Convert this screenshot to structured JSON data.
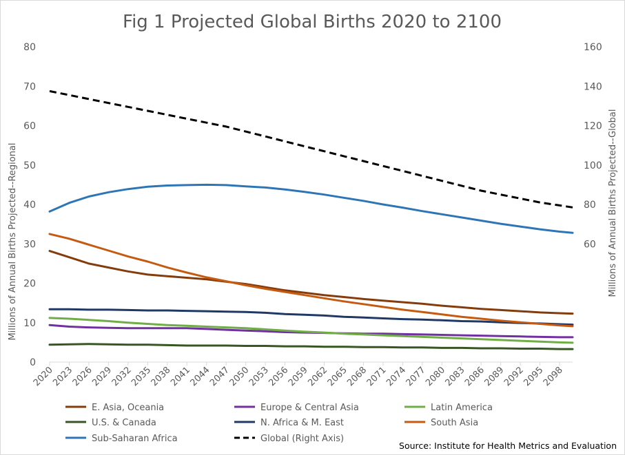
{
  "chart_data": {
    "type": "line",
    "title": "Fig 1 Projected Global Births 2020 to 2100",
    "ylabel": "Millions of Annual Births Projected--Regional",
    "y2label": "Millions of Annual Births Projected--Global",
    "ylim": [
      0,
      80
    ],
    "yticks": [
      0,
      10,
      20,
      30,
      40,
      50,
      60,
      70,
      80
    ],
    "y2lim": [
      0,
      160
    ],
    "y2ticks": [
      60,
      80,
      100,
      120,
      140,
      160
    ],
    "xlim": [
      2020,
      2100
    ],
    "xticks": [
      2020,
      2023,
      2026,
      2029,
      2032,
      2035,
      2038,
      2041,
      2044,
      2047,
      2050,
      2053,
      2056,
      2059,
      2062,
      2065,
      2068,
      2071,
      2074,
      2077,
      2080,
      2083,
      2086,
      2089,
      2092,
      2095,
      2098
    ],
    "grid": false,
    "legend_position": "bottom",
    "source": "Source: Institute for Health Metrics and Evaluation",
    "series": [
      {
        "name": "E. Asia, Oceania",
        "axis": "left",
        "color": "#843c0c",
        "dash": false,
        "points": [
          [
            2020,
            28.2
          ],
          [
            2023,
            26.6
          ],
          [
            2026,
            25.0
          ],
          [
            2029,
            24.0
          ],
          [
            2032,
            23.0
          ],
          [
            2035,
            22.2
          ],
          [
            2038,
            21.8
          ],
          [
            2041,
            21.4
          ],
          [
            2044,
            21.0
          ],
          [
            2047,
            20.4
          ],
          [
            2050,
            19.8
          ],
          [
            2053,
            19.0
          ],
          [
            2056,
            18.2
          ],
          [
            2059,
            17.6
          ],
          [
            2062,
            17.0
          ],
          [
            2065,
            16.5
          ],
          [
            2068,
            16.0
          ],
          [
            2071,
            15.6
          ],
          [
            2074,
            15.2
          ],
          [
            2077,
            14.8
          ],
          [
            2080,
            14.3
          ],
          [
            2083,
            13.9
          ],
          [
            2086,
            13.5
          ],
          [
            2089,
            13.2
          ],
          [
            2092,
            12.9
          ],
          [
            2095,
            12.6
          ],
          [
            2098,
            12.4
          ],
          [
            2100,
            12.3
          ]
        ]
      },
      {
        "name": "Europe & Central Asia",
        "axis": "left",
        "color": "#7030a0",
        "dash": false,
        "points": [
          [
            2020,
            9.4
          ],
          [
            2023,
            9.0
          ],
          [
            2026,
            8.8
          ],
          [
            2029,
            8.7
          ],
          [
            2032,
            8.6
          ],
          [
            2035,
            8.6
          ],
          [
            2038,
            8.6
          ],
          [
            2041,
            8.6
          ],
          [
            2044,
            8.4
          ],
          [
            2047,
            8.2
          ],
          [
            2050,
            8.0
          ],
          [
            2053,
            7.8
          ],
          [
            2056,
            7.6
          ],
          [
            2059,
            7.5
          ],
          [
            2062,
            7.4
          ],
          [
            2065,
            7.3
          ],
          [
            2068,
            7.2
          ],
          [
            2071,
            7.2
          ],
          [
            2074,
            7.1
          ],
          [
            2077,
            7.0
          ],
          [
            2080,
            6.9
          ],
          [
            2083,
            6.8
          ],
          [
            2086,
            6.7
          ],
          [
            2089,
            6.6
          ],
          [
            2092,
            6.5
          ],
          [
            2095,
            6.4
          ],
          [
            2098,
            6.3
          ],
          [
            2100,
            6.3
          ]
        ]
      },
      {
        "name": "Latin America",
        "axis": "left",
        "color": "#70ad47",
        "dash": false,
        "points": [
          [
            2020,
            11.2
          ],
          [
            2023,
            11.0
          ],
          [
            2026,
            10.7
          ],
          [
            2029,
            10.4
          ],
          [
            2032,
            10.0
          ],
          [
            2035,
            9.7
          ],
          [
            2038,
            9.4
          ],
          [
            2041,
            9.2
          ],
          [
            2044,
            9.0
          ],
          [
            2047,
            8.8
          ],
          [
            2050,
            8.6
          ],
          [
            2053,
            8.3
          ],
          [
            2056,
            8.0
          ],
          [
            2059,
            7.7
          ],
          [
            2062,
            7.5
          ],
          [
            2065,
            7.2
          ],
          [
            2068,
            7.0
          ],
          [
            2071,
            6.8
          ],
          [
            2074,
            6.6
          ],
          [
            2077,
            6.4
          ],
          [
            2080,
            6.2
          ],
          [
            2083,
            6.0
          ],
          [
            2086,
            5.8
          ],
          [
            2089,
            5.6
          ],
          [
            2092,
            5.4
          ],
          [
            2095,
            5.2
          ],
          [
            2098,
            5.0
          ],
          [
            2100,
            4.9
          ]
        ]
      },
      {
        "name": "U.S. & Canada",
        "axis": "left",
        "color": "#375623",
        "dash": false,
        "points": [
          [
            2020,
            4.4
          ],
          [
            2023,
            4.5
          ],
          [
            2026,
            4.6
          ],
          [
            2029,
            4.5
          ],
          [
            2032,
            4.4
          ],
          [
            2035,
            4.4
          ],
          [
            2038,
            4.3
          ],
          [
            2041,
            4.2
          ],
          [
            2044,
            4.2
          ],
          [
            2047,
            4.2
          ],
          [
            2050,
            4.1
          ],
          [
            2053,
            4.1
          ],
          [
            2056,
            4.0
          ],
          [
            2059,
            4.0
          ],
          [
            2062,
            3.9
          ],
          [
            2065,
            3.9
          ],
          [
            2068,
            3.8
          ],
          [
            2071,
            3.8
          ],
          [
            2074,
            3.7
          ],
          [
            2077,
            3.7
          ],
          [
            2080,
            3.6
          ],
          [
            2083,
            3.6
          ],
          [
            2086,
            3.5
          ],
          [
            2089,
            3.5
          ],
          [
            2092,
            3.4
          ],
          [
            2095,
            3.4
          ],
          [
            2098,
            3.3
          ],
          [
            2100,
            3.3
          ]
        ]
      },
      {
        "name": "N. Africa & M. East",
        "axis": "left",
        "color": "#203864",
        "dash": false,
        "points": [
          [
            2020,
            13.4
          ],
          [
            2023,
            13.4
          ],
          [
            2026,
            13.3
          ],
          [
            2029,
            13.3
          ],
          [
            2032,
            13.2
          ],
          [
            2035,
            13.1
          ],
          [
            2038,
            13.1
          ],
          [
            2041,
            13.0
          ],
          [
            2044,
            12.9
          ],
          [
            2047,
            12.8
          ],
          [
            2050,
            12.7
          ],
          [
            2053,
            12.5
          ],
          [
            2056,
            12.2
          ],
          [
            2059,
            12.0
          ],
          [
            2062,
            11.8
          ],
          [
            2065,
            11.5
          ],
          [
            2068,
            11.3
          ],
          [
            2071,
            11.1
          ],
          [
            2074,
            10.9
          ],
          [
            2077,
            10.8
          ],
          [
            2080,
            10.6
          ],
          [
            2083,
            10.4
          ],
          [
            2086,
            10.3
          ],
          [
            2089,
            10.1
          ],
          [
            2092,
            9.9
          ],
          [
            2095,
            9.8
          ],
          [
            2098,
            9.6
          ],
          [
            2100,
            9.5
          ]
        ]
      },
      {
        "name": "South Asia",
        "axis": "left",
        "color": "#c55a11",
        "dash": false,
        "points": [
          [
            2020,
            32.5
          ],
          [
            2023,
            31.3
          ],
          [
            2026,
            29.8
          ],
          [
            2029,
            28.3
          ],
          [
            2032,
            26.8
          ],
          [
            2035,
            25.5
          ],
          [
            2038,
            24.0
          ],
          [
            2041,
            22.7
          ],
          [
            2044,
            21.5
          ],
          [
            2047,
            20.5
          ],
          [
            2050,
            19.5
          ],
          [
            2053,
            18.6
          ],
          [
            2056,
            17.8
          ],
          [
            2059,
            17.0
          ],
          [
            2062,
            16.2
          ],
          [
            2065,
            15.4
          ],
          [
            2068,
            14.7
          ],
          [
            2071,
            14.0
          ],
          [
            2074,
            13.3
          ],
          [
            2077,
            12.7
          ],
          [
            2080,
            12.1
          ],
          [
            2083,
            11.5
          ],
          [
            2086,
            11.0
          ],
          [
            2089,
            10.5
          ],
          [
            2092,
            10.1
          ],
          [
            2095,
            9.7
          ],
          [
            2098,
            9.3
          ],
          [
            2100,
            9.1
          ]
        ]
      },
      {
        "name": "Sub-Saharan Africa",
        "axis": "left",
        "color": "#2e75b6",
        "dash": false,
        "points": [
          [
            2020,
            38.2
          ],
          [
            2023,
            40.4
          ],
          [
            2026,
            42.0
          ],
          [
            2029,
            43.1
          ],
          [
            2032,
            43.9
          ],
          [
            2035,
            44.5
          ],
          [
            2038,
            44.8
          ],
          [
            2041,
            44.9
          ],
          [
            2044,
            45.0
          ],
          [
            2047,
            44.9
          ],
          [
            2050,
            44.6
          ],
          [
            2053,
            44.3
          ],
          [
            2056,
            43.8
          ],
          [
            2059,
            43.2
          ],
          [
            2062,
            42.5
          ],
          [
            2065,
            41.7
          ],
          [
            2068,
            40.9
          ],
          [
            2071,
            40.0
          ],
          [
            2074,
            39.2
          ],
          [
            2077,
            38.3
          ],
          [
            2080,
            37.5
          ],
          [
            2083,
            36.7
          ],
          [
            2086,
            35.9
          ],
          [
            2089,
            35.1
          ],
          [
            2092,
            34.4
          ],
          [
            2095,
            33.7
          ],
          [
            2098,
            33.1
          ],
          [
            2100,
            32.8
          ]
        ]
      },
      {
        "name": "Global (Right Axis)",
        "axis": "right",
        "color": "#000000",
        "dash": true,
        "points": [
          [
            2020,
            137.5
          ],
          [
            2023,
            135.5
          ],
          [
            2026,
            133.5
          ],
          [
            2029,
            131.5
          ],
          [
            2032,
            129.5
          ],
          [
            2035,
            127.5
          ],
          [
            2038,
            125.5
          ],
          [
            2041,
            123.5
          ],
          [
            2044,
            121.5
          ],
          [
            2047,
            119.5
          ],
          [
            2050,
            117.0
          ],
          [
            2053,
            114.5
          ],
          [
            2056,
            112.0
          ],
          [
            2059,
            109.5
          ],
          [
            2062,
            107.0
          ],
          [
            2065,
            104.5
          ],
          [
            2068,
            102.0
          ],
          [
            2071,
            99.5
          ],
          [
            2074,
            97.0
          ],
          [
            2077,
            94.5
          ],
          [
            2080,
            92.0
          ],
          [
            2083,
            89.5
          ],
          [
            2086,
            87.0
          ],
          [
            2089,
            85.0
          ],
          [
            2092,
            83.0
          ],
          [
            2095,
            81.0
          ],
          [
            2098,
            79.5
          ],
          [
            2100,
            78.5
          ]
        ]
      }
    ]
  }
}
